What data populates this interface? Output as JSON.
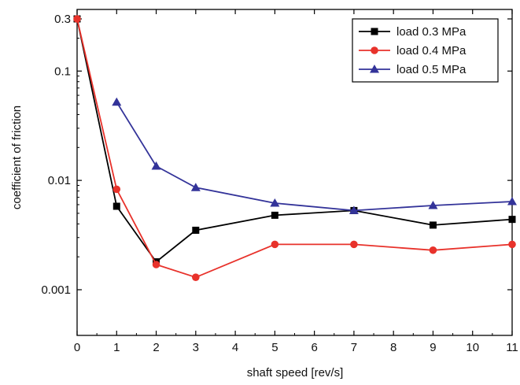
{
  "chart_data": {
    "type": "line",
    "title": "",
    "xlabel": "shaft speed [rev/s]",
    "ylabel": "coefficient of friction",
    "xlim": [
      0,
      11
    ],
    "ylim": [
      0.001,
      0.3
    ],
    "y_scale": "log",
    "x_ticks": [
      0,
      1,
      2,
      3,
      4,
      5,
      6,
      7,
      8,
      9,
      10,
      11
    ],
    "x_tick_labels": [
      "0",
      "1",
      "2",
      "3",
      "4",
      "5",
      "6",
      "7",
      "8",
      "9",
      "10",
      "11"
    ],
    "y_ticks": [
      0.001,
      0.01,
      0.1,
      0.3
    ],
    "y_tick_labels": [
      "0.001",
      "0.01",
      "0.1",
      "0.3"
    ],
    "grid": false,
    "legend_position": "top-right",
    "series": [
      {
        "name": "load 0.3 MPa",
        "color": "#000000",
        "marker": "square",
        "x": [
          0,
          1,
          2,
          3,
          5,
          7,
          9,
          11
        ],
        "y": [
          0.3,
          0.0058,
          0.0018,
          0.0035,
          0.0048,
          0.0053,
          0.0039,
          0.0044
        ]
      },
      {
        "name": "load 0.4 MPa",
        "color": "#e8322b",
        "marker": "circle",
        "x": [
          0,
          1,
          2,
          3,
          5,
          7,
          9,
          11
        ],
        "y": [
          0.3,
          0.0083,
          0.0017,
          0.0013,
          0.0026,
          0.0026,
          0.0023,
          0.0026
        ]
      },
      {
        "name": "load 0.5 MPa",
        "color": "#333399",
        "marker": "triangle",
        "x": [
          1,
          2,
          3,
          5,
          7,
          9,
          11
        ],
        "y": [
          0.052,
          0.0135,
          0.0086,
          0.0062,
          0.0053,
          0.0059,
          0.0064
        ]
      }
    ]
  }
}
